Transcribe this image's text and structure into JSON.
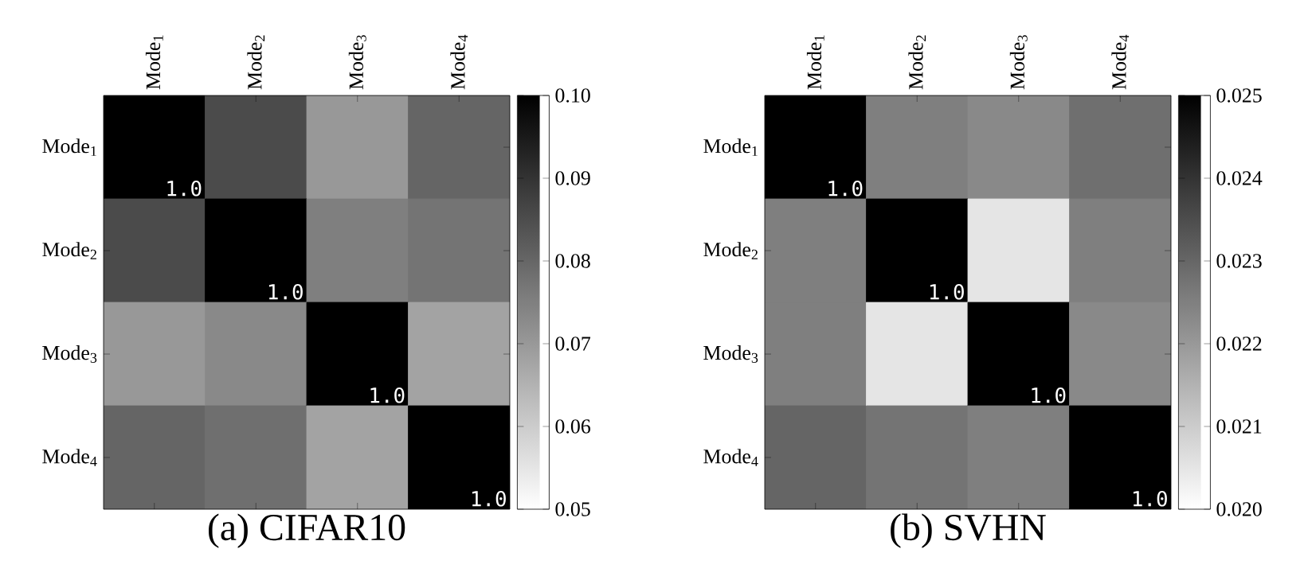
{
  "chart_data": [
    {
      "type": "heatmap",
      "title": "(a) CIFAR10",
      "categories": [
        "Mode$_{1}$",
        "Mode$_{2}$",
        "Mode$_{3}$",
        "Mode$_{4}$"
      ],
      "y_categories": [
        "Mode$_{1}$",
        "Mode$_{2}$",
        "Mode$_{3}$",
        "Mode$_{4}$"
      ],
      "cells": [
        [
          1.0,
          0.085,
          0.07,
          0.08
        ],
        [
          0.085,
          1.0,
          0.075,
          0.077
        ],
        [
          0.07,
          0.073,
          1.0,
          0.068
        ],
        [
          0.08,
          0.078,
          0.068,
          1.0
        ]
      ],
      "cell_labels": [
        [
          "1.0",
          null,
          null,
          null
        ],
        [
          null,
          "1.0",
          null,
          null
        ],
        [
          null,
          null,
          "1.0",
          null
        ],
        [
          null,
          null,
          null,
          "1.0"
        ]
      ],
      "clim": [
        0.05,
        0.1
      ],
      "cticks": [
        {
          "value": 0.05,
          "label": "0.05"
        },
        {
          "value": 0.06,
          "label": "0.06"
        },
        {
          "value": 0.07,
          "label": "0.07"
        },
        {
          "value": 0.08,
          "label": "0.08"
        },
        {
          "value": 0.09,
          "label": "0.09"
        },
        {
          "value": 0.1,
          "label": "0.10"
        }
      ]
    },
    {
      "type": "heatmap",
      "title": "(b)  SVHN",
      "categories": [
        "Mode$_{1}$",
        "Mode$_{2}$",
        "Mode$_{3}$",
        "Mode$_{4}$"
      ],
      "y_categories": [
        "Mode$_{1}$",
        "Mode$_{2}$",
        "Mode$_{3}$",
        "Mode$_{4}$"
      ],
      "cells": [
        [
          1.0,
          0.0225,
          0.0223,
          0.0228
        ],
        [
          0.0225,
          1.0,
          0.0205,
          0.0225
        ],
        [
          0.0225,
          0.0205,
          1.0,
          0.0223
        ],
        [
          0.023,
          0.0227,
          0.0225,
          1.0
        ]
      ],
      "cell_labels": [
        [
          "1.0",
          null,
          null,
          null
        ],
        [
          null,
          "1.0",
          null,
          null
        ],
        [
          null,
          null,
          "1.0",
          null
        ],
        [
          null,
          null,
          null,
          "1.0"
        ]
      ],
      "clim": [
        0.02,
        0.025
      ],
      "cticks": [
        {
          "value": 0.02,
          "label": "0.020"
        },
        {
          "value": 0.021,
          "label": "0.021"
        },
        {
          "value": 0.022,
          "label": "0.022"
        },
        {
          "value": 0.023,
          "label": "0.023"
        },
        {
          "value": 0.024,
          "label": "0.024"
        },
        {
          "value": 0.025,
          "label": "0.025"
        }
      ]
    }
  ]
}
